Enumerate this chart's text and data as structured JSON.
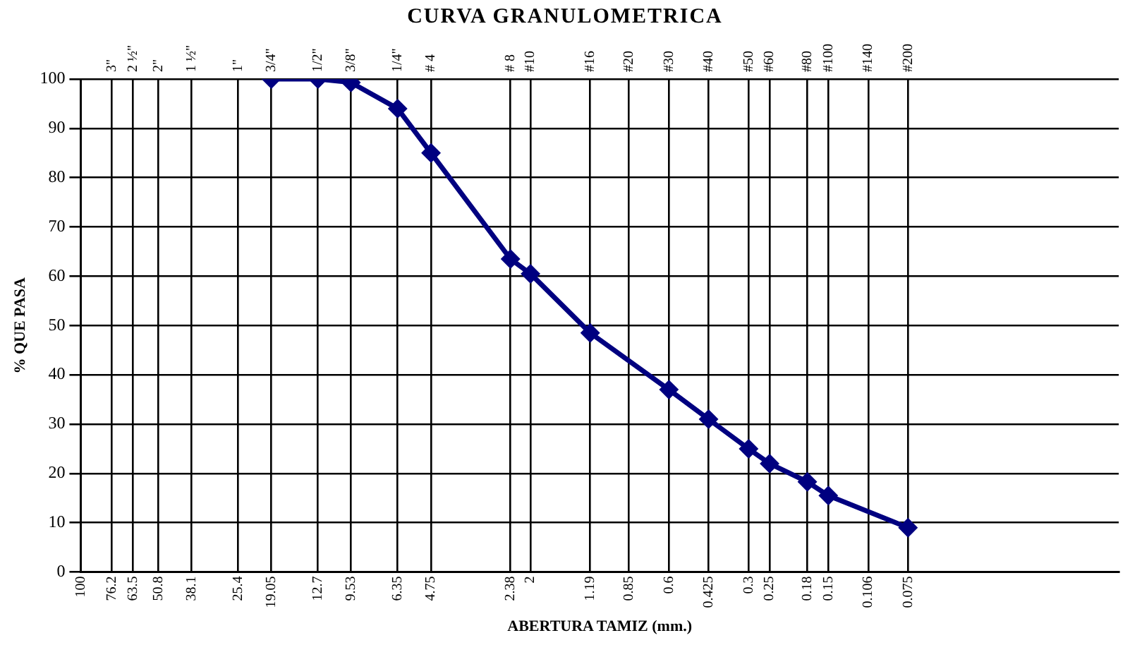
{
  "chart_data": {
    "type": "line",
    "title": "CURVA GRANULOMETRICA",
    "xlabel": "ABERTURA TAMIZ (mm.)",
    "ylabel": "% QUE PASA",
    "x": [
      19.05,
      12.7,
      9.53,
      6.35,
      4.75,
      2.38,
      2,
      1.19,
      0.6,
      0.425,
      0.3,
      0.25,
      0.18,
      0.15,
      0.075
    ],
    "series": [
      {
        "color": "#000080",
        "values": [
          100,
          100,
          99.3,
          94,
          85,
          63.5,
          60.5,
          48.5,
          37,
          31,
          25,
          22,
          18.3,
          15.5,
          9
        ]
      }
    ],
    "log": "x",
    "xlim": [
      100,
      0.012
    ],
    "ylim": [
      0,
      100
    ],
    "yticks": [
      0,
      10,
      20,
      30,
      40,
      50,
      60,
      70,
      80,
      90,
      100
    ],
    "xticks": [
      100,
      76.2,
      63.5,
      50.8,
      38.1,
      25.4,
      19.05,
      12.7,
      9.53,
      6.35,
      4.75,
      2.38,
      2,
      1.19,
      0.85,
      0.6,
      0.425,
      0.3,
      0.25,
      0.18,
      0.15,
      0.106,
      0.075
    ],
    "annotations": [
      "3\"",
      "2 ½\"",
      "2\"",
      "1 ½\"",
      "1\"",
      "3/4\"",
      "1/2\"",
      "3/8\"",
      "1/4\"",
      "# 4",
      "# 8",
      "#10",
      "#16",
      "#20",
      "#30",
      "#40",
      "#50",
      "#60",
      "#80",
      "#100",
      "#140",
      "#200"
    ],
    "grid": true,
    "legend": false,
    "marker": "diamond",
    "line_style": "solid"
  }
}
